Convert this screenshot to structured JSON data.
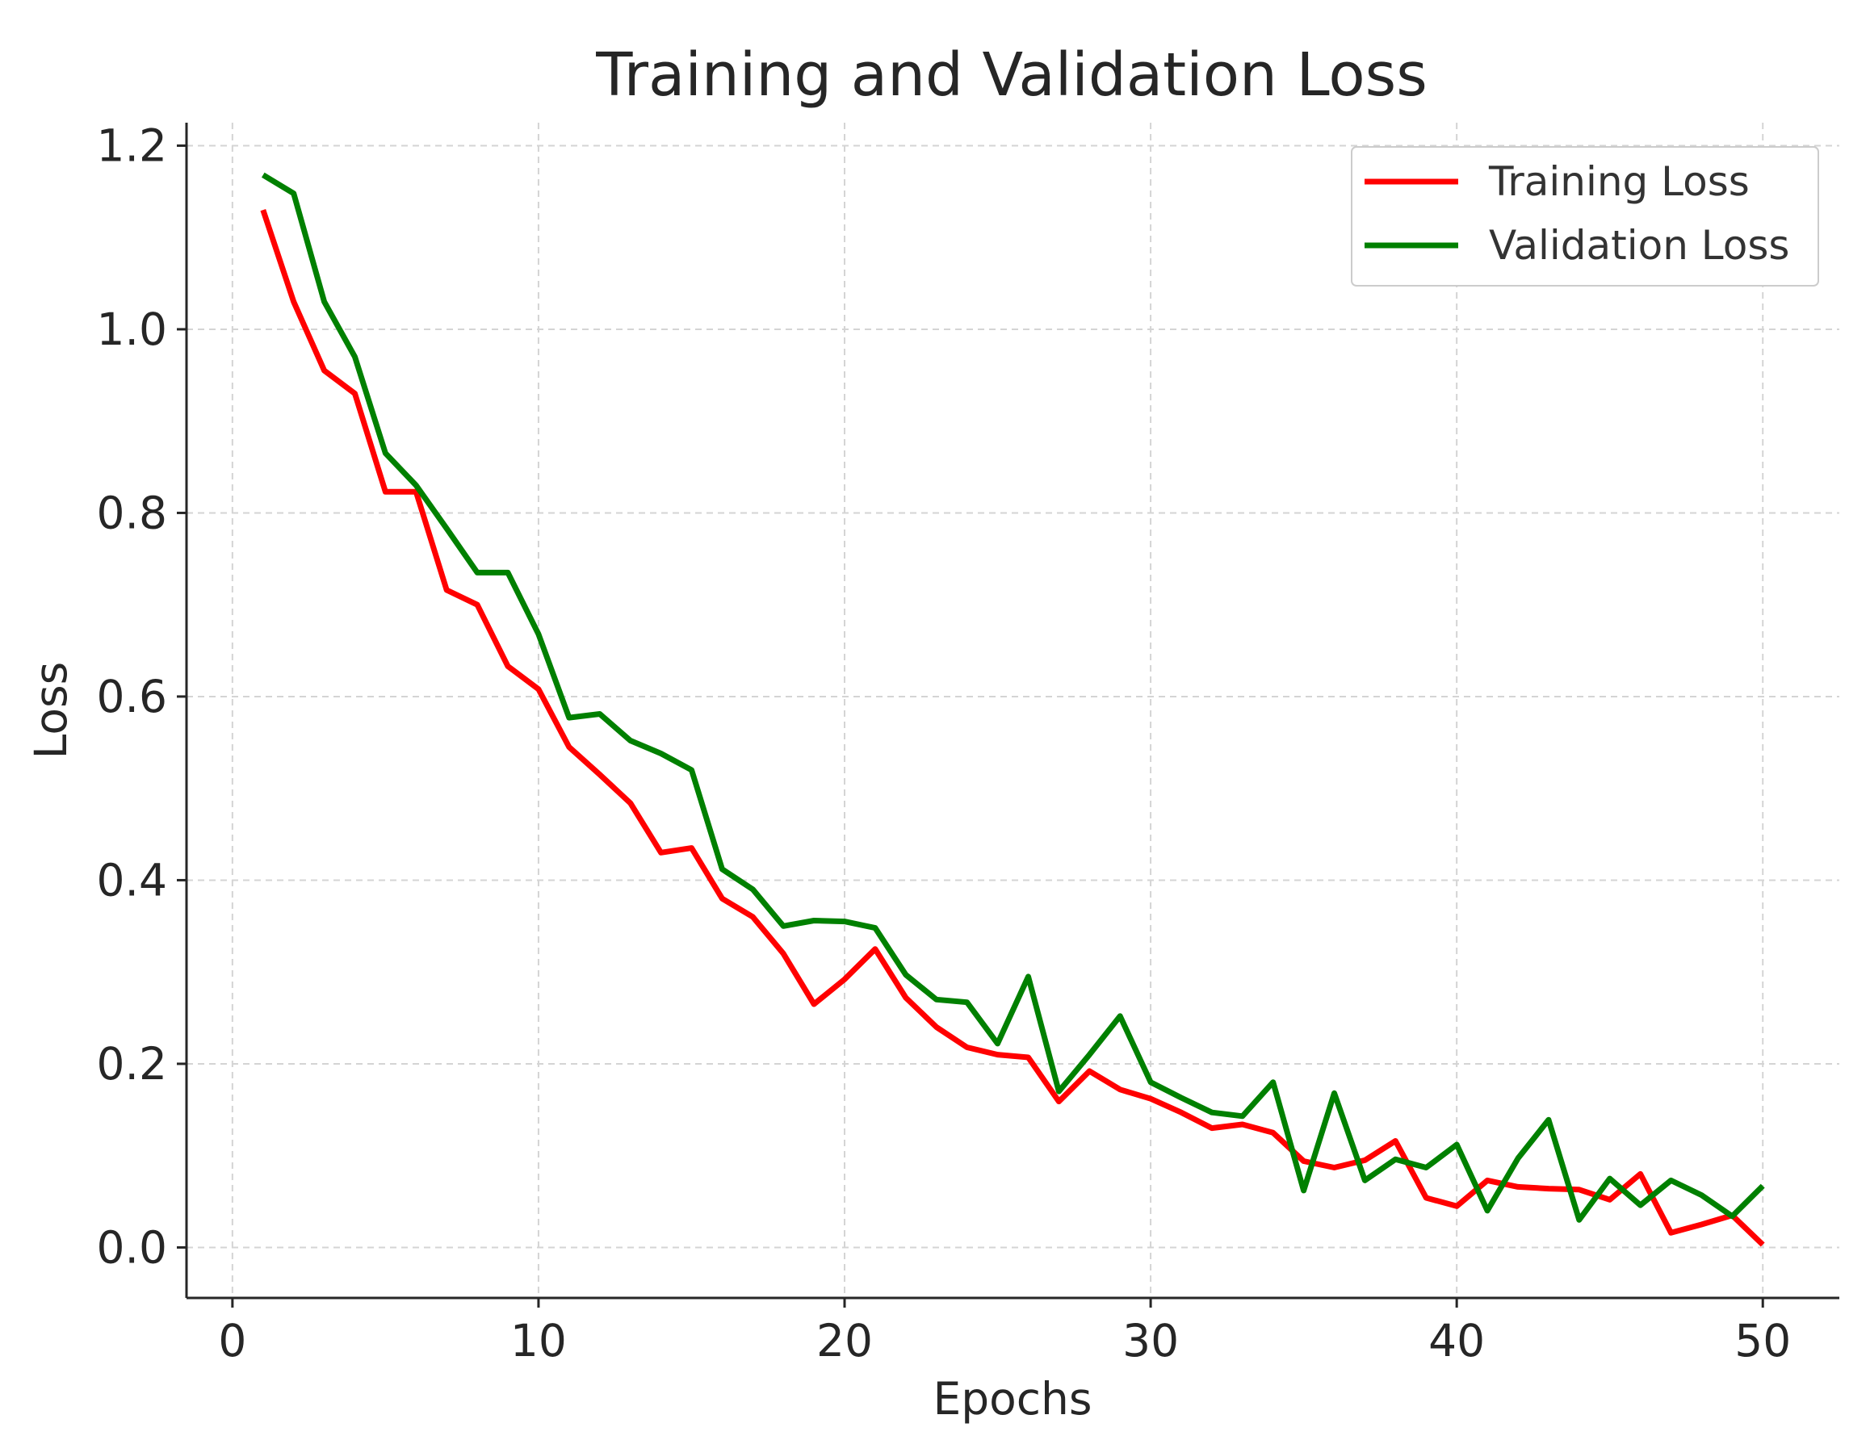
{
  "chart_data": {
    "type": "line",
    "title": "Training and Validation Loss",
    "xlabel": "Epochs",
    "ylabel": "Loss",
    "xlim": [
      -1.5,
      52.5
    ],
    "ylim": [
      -0.055,
      1.225
    ],
    "xticks": [
      0,
      10,
      20,
      30,
      40,
      50
    ],
    "xtick_labels": [
      "0",
      "10",
      "20",
      "30",
      "40",
      "50"
    ],
    "yticks": [
      0.0,
      0.2,
      0.4,
      0.6,
      0.8,
      1.0,
      1.2
    ],
    "ytick_labels": [
      "0.0",
      "0.2",
      "0.4",
      "0.6",
      "0.8",
      "1.0",
      "1.2"
    ],
    "grid": true,
    "legend_position": "top-right",
    "x": [
      1,
      2,
      3,
      4,
      5,
      6,
      7,
      8,
      9,
      10,
      11,
      12,
      13,
      14,
      15,
      16,
      17,
      18,
      19,
      20,
      21,
      22,
      23,
      24,
      25,
      26,
      27,
      28,
      29,
      30,
      31,
      32,
      33,
      34,
      35,
      36,
      37,
      38,
      39,
      40,
      41,
      42,
      43,
      44,
      45,
      46,
      47,
      48,
      49,
      50
    ],
    "series": [
      {
        "name": "Training Loss",
        "color": "#ff0000",
        "values": [
          1.13,
          1.03,
          0.955,
          0.93,
          0.823,
          0.823,
          0.716,
          0.7,
          0.633,
          0.608,
          0.545,
          0.515,
          0.484,
          0.43,
          0.435,
          0.38,
          0.36,
          0.32,
          0.265,
          0.292,
          0.325,
          0.272,
          0.24,
          0.218,
          0.21,
          0.207,
          0.159,
          0.192,
          0.172,
          0.162,
          0.147,
          0.13,
          0.134,
          0.125,
          0.094,
          0.087,
          0.095,
          0.116,
          0.054,
          0.045,
          0.073,
          0.066,
          0.064,
          0.063,
          0.052,
          0.08,
          0.016,
          0.025,
          0.035,
          0.003
        ]
      },
      {
        "name": "Validation Loss",
        "color": "#008000",
        "values": [
          1.168,
          1.148,
          1.03,
          0.97,
          0.865,
          0.83,
          0.783,
          0.735,
          0.735,
          0.668,
          0.577,
          0.581,
          0.552,
          0.538,
          0.52,
          0.412,
          0.39,
          0.35,
          0.356,
          0.355,
          0.348,
          0.297,
          0.27,
          0.267,
          0.222,
          0.295,
          0.17,
          0.21,
          0.252,
          0.18,
          0.163,
          0.147,
          0.143,
          0.18,
          0.062,
          0.168,
          0.073,
          0.096,
          0.087,
          0.112,
          0.04,
          0.097,
          0.139,
          0.03,
          0.075,
          0.046,
          0.073,
          0.057,
          0.034,
          0.067
        ]
      }
    ]
  }
}
